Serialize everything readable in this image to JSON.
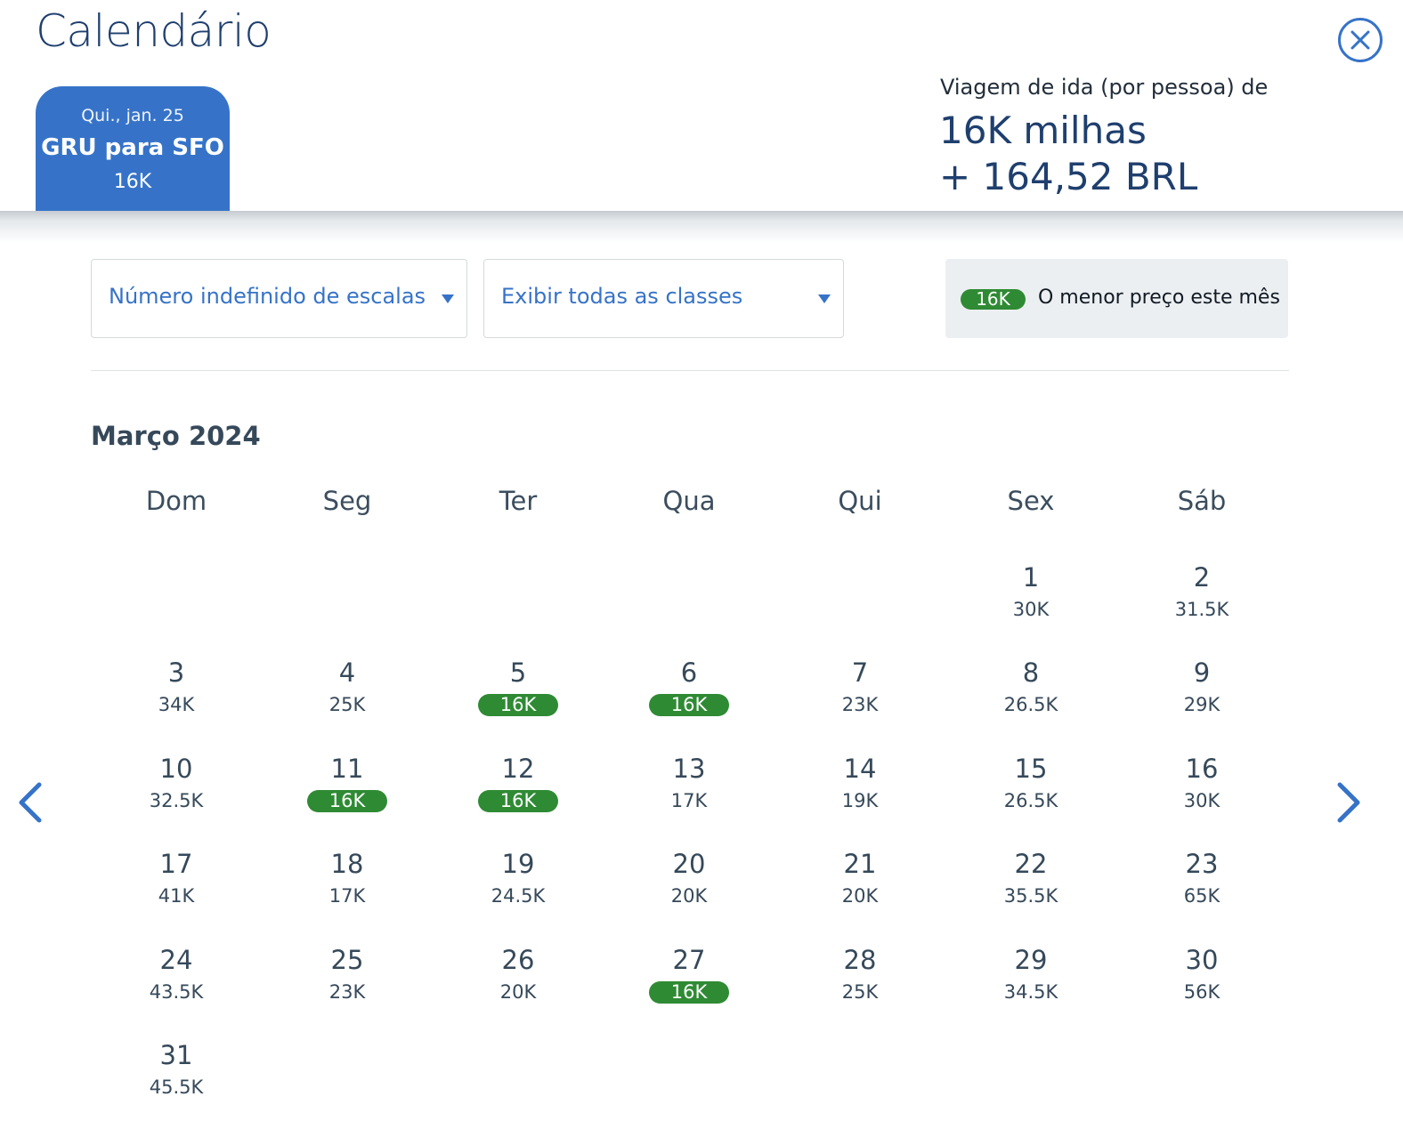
{
  "header": {
    "title": "Calendário",
    "close_icon": "close-icon"
  },
  "trip": {
    "date": "Qui., jan. 25",
    "route": "GRU para SFO",
    "price": "16K"
  },
  "summary": {
    "label": "Viagem de ida (por pessoa) de",
    "miles": "16K milhas",
    "money": "+ 164,52 BRL"
  },
  "filters": {
    "stops": "Número indefinido de escalas",
    "classes": "Exibir todas as classes"
  },
  "legend": {
    "badge": "16K",
    "text": "O menor preço este mês"
  },
  "colors": {
    "accent_blue": "#3673c8",
    "title_navy": "#1f3f6e",
    "lowest_price_green": "#2f8a34"
  },
  "calendar": {
    "month": "Março 2024",
    "weekdays": [
      "Dom",
      "Seg",
      "Ter",
      "Qua",
      "Qui",
      "Sex",
      "Sáb"
    ],
    "first_weekday_index": 5,
    "days": [
      {
        "day": "1",
        "price": "30K",
        "lowest": false
      },
      {
        "day": "2",
        "price": "31.5K",
        "lowest": false
      },
      {
        "day": "3",
        "price": "34K",
        "lowest": false
      },
      {
        "day": "4",
        "price": "25K",
        "lowest": false
      },
      {
        "day": "5",
        "price": "16K",
        "lowest": true
      },
      {
        "day": "6",
        "price": "16K",
        "lowest": true
      },
      {
        "day": "7",
        "price": "23K",
        "lowest": false
      },
      {
        "day": "8",
        "price": "26.5K",
        "lowest": false
      },
      {
        "day": "9",
        "price": "29K",
        "lowest": false
      },
      {
        "day": "10",
        "price": "32.5K",
        "lowest": false
      },
      {
        "day": "11",
        "price": "16K",
        "lowest": true
      },
      {
        "day": "12",
        "price": "16K",
        "lowest": true
      },
      {
        "day": "13",
        "price": "17K",
        "lowest": false
      },
      {
        "day": "14",
        "price": "19K",
        "lowest": false
      },
      {
        "day": "15",
        "price": "26.5K",
        "lowest": false
      },
      {
        "day": "16",
        "price": "30K",
        "lowest": false
      },
      {
        "day": "17",
        "price": "41K",
        "lowest": false
      },
      {
        "day": "18",
        "price": "17K",
        "lowest": false
      },
      {
        "day": "19",
        "price": "24.5K",
        "lowest": false
      },
      {
        "day": "20",
        "price": "20K",
        "lowest": false
      },
      {
        "day": "21",
        "price": "20K",
        "lowest": false
      },
      {
        "day": "22",
        "price": "35.5K",
        "lowest": false
      },
      {
        "day": "23",
        "price": "65K",
        "lowest": false
      },
      {
        "day": "24",
        "price": "43.5K",
        "lowest": false
      },
      {
        "day": "25",
        "price": "23K",
        "lowest": false
      },
      {
        "day": "26",
        "price": "20K",
        "lowest": false
      },
      {
        "day": "27",
        "price": "16K",
        "lowest": true
      },
      {
        "day": "28",
        "price": "25K",
        "lowest": false
      },
      {
        "day": "29",
        "price": "34.5K",
        "lowest": false
      },
      {
        "day": "30",
        "price": "56K",
        "lowest": false
      },
      {
        "day": "31",
        "price": "45.5K",
        "lowest": false
      }
    ]
  },
  "navigation": {
    "prev_icon": "chevron-left-icon",
    "next_icon": "chevron-right-icon"
  }
}
